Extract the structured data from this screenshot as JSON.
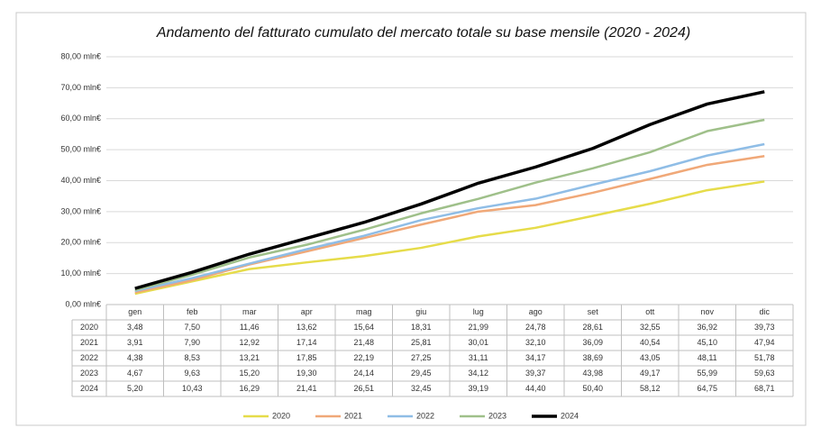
{
  "chart_data": {
    "type": "line",
    "title": "Andamento del fatturato cumulato del mercato totale su base mensile (2020 - 2024)",
    "categories": [
      "gen",
      "feb",
      "mar",
      "apr",
      "mag",
      "giu",
      "lug",
      "ago",
      "set",
      "ott",
      "nov",
      "dic"
    ],
    "ylim": [
      0,
      80
    ],
    "yticks": [
      {
        "value": 0,
        "label": "0,00 mln€"
      },
      {
        "value": 10,
        "label": "10,00 mln€"
      },
      {
        "value": 20,
        "label": "20,00 mln€"
      },
      {
        "value": 30,
        "label": "30,00 mln€"
      },
      {
        "value": 40,
        "label": "40,00 mln€"
      },
      {
        "value": 50,
        "label": "50,00 mln€"
      },
      {
        "value": 60,
        "label": "60,00 mln€"
      },
      {
        "value": 70,
        "label": "70,00 mln€"
      },
      {
        "value": 80,
        "label": "80,00 mln€"
      }
    ],
    "grid": true,
    "legend": "bottom",
    "series": [
      {
        "name": "2020",
        "color": "#e6dc4a",
        "values": [
          3.48,
          7.5,
          11.46,
          13.62,
          15.64,
          18.31,
          21.99,
          24.78,
          28.61,
          32.55,
          36.92,
          39.73
        ],
        "value_labels": [
          "3,48",
          "7,50",
          "11,46",
          "13,62",
          "15,64",
          "18,31",
          "21,99",
          "24,78",
          "28,61",
          "32,55",
          "36,92",
          "39,73"
        ]
      },
      {
        "name": "2021",
        "color": "#f0a878",
        "values": [
          3.91,
          7.9,
          12.92,
          17.14,
          21.48,
          25.81,
          30.01,
          32.1,
          36.09,
          40.54,
          45.1,
          47.94
        ],
        "value_labels": [
          "3,91",
          "7,90",
          "12,92",
          "17,14",
          "21,48",
          "25,81",
          "30,01",
          "32,10",
          "36,09",
          "40,54",
          "45,10",
          "47,94"
        ]
      },
      {
        "name": "2022",
        "color": "#8fbde6",
        "values": [
          4.38,
          8.53,
          13.21,
          17.85,
          22.19,
          27.25,
          31.11,
          34.17,
          38.69,
          43.05,
          48.11,
          51.78
        ],
        "value_labels": [
          "4,38",
          "8,53",
          "13,21",
          "17,85",
          "22,19",
          "27,25",
          "31,11",
          "34,17",
          "38,69",
          "43,05",
          "48,11",
          "51,78"
        ]
      },
      {
        "name": "2023",
        "color": "#9fc08a",
        "values": [
          4.67,
          9.63,
          15.2,
          19.3,
          24.14,
          29.45,
          34.12,
          39.37,
          43.98,
          49.17,
          55.99,
          59.63
        ],
        "value_labels": [
          "4,67",
          "9,63",
          "15,20",
          "19,30",
          "24,14",
          "29,45",
          "34,12",
          "39,37",
          "43,98",
          "49,17",
          "55,99",
          "59,63"
        ]
      },
      {
        "name": "2024",
        "color": "#000000",
        "values": [
          5.2,
          10.43,
          16.29,
          21.41,
          26.51,
          32.45,
          39.19,
          44.4,
          50.4,
          58.12,
          64.75,
          68.71
        ],
        "value_labels": [
          "5,20",
          "10,43",
          "16,29",
          "21,41",
          "26,51",
          "32,45",
          "39,19",
          "44,40",
          "50,40",
          "58,12",
          "64,75",
          "68,71"
        ]
      }
    ]
  }
}
